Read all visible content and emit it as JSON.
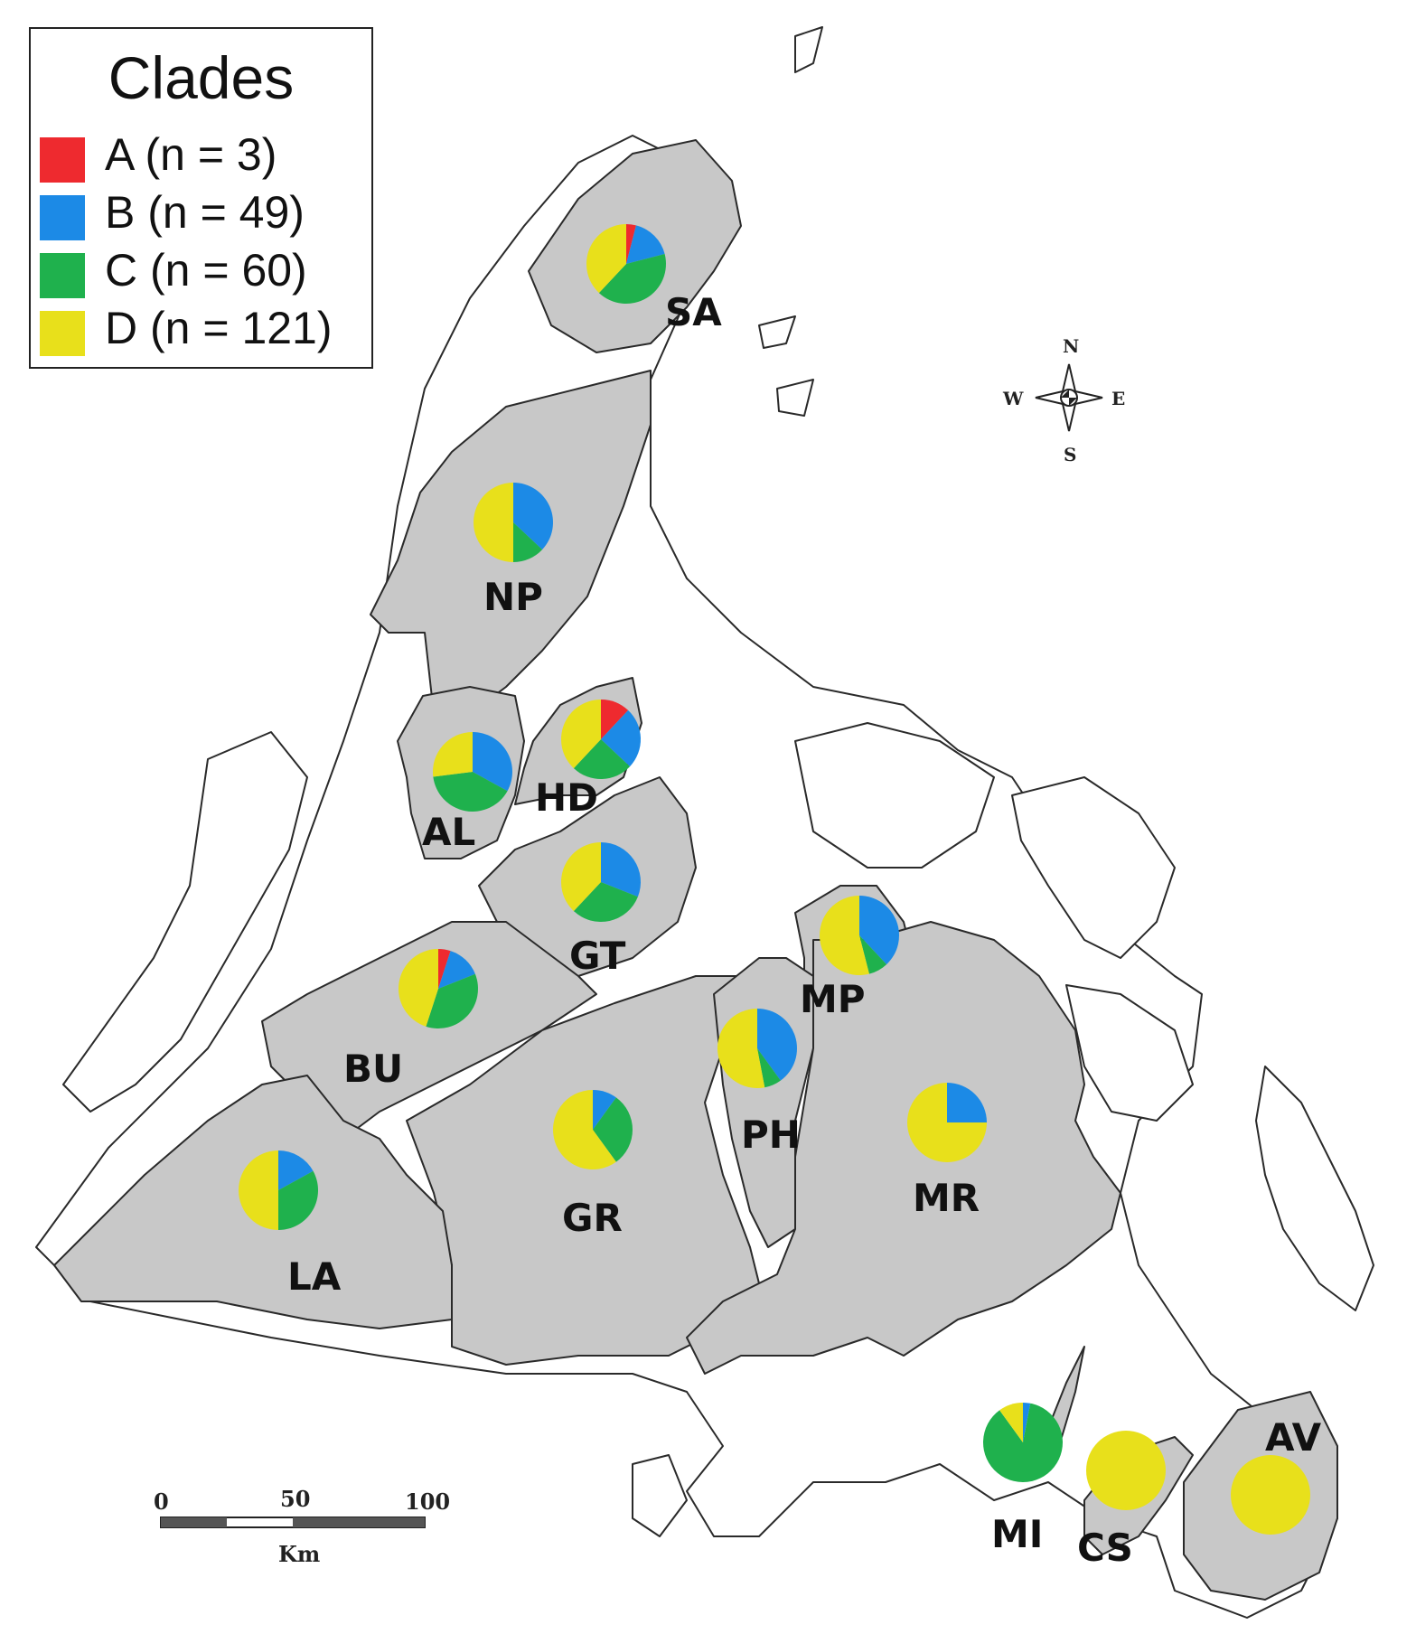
{
  "legend": {
    "title": "Clades",
    "items": [
      {
        "key": "A",
        "label": "A (n = 3)",
        "color": "#ee2a2f"
      },
      {
        "key": "B",
        "label": "B (n = 49)",
        "color": "#1c8ae6"
      },
      {
        "key": "C",
        "label": "C (n = 60)",
        "color": "#1fb14d"
      },
      {
        "key": "D",
        "label": "D (n = 121)",
        "color": "#e8e01b"
      }
    ]
  },
  "colors": {
    "land_shaded": "#c8c8c8",
    "coastline": "#2a2a2a"
  },
  "regions": [
    {
      "code": "SA",
      "proportions": {
        "A": 0.04,
        "B": 0.17,
        "C": 0.41,
        "D": 0.38
      }
    },
    {
      "code": "NP",
      "proportions": {
        "A": 0.0,
        "B": 0.37,
        "C": 0.13,
        "D": 0.5
      }
    },
    {
      "code": "AL",
      "proportions": {
        "A": 0.0,
        "B": 0.33,
        "C": 0.4,
        "D": 0.27
      }
    },
    {
      "code": "HD",
      "proportions": {
        "A": 0.12,
        "B": 0.25,
        "C": 0.25,
        "D": 0.38
      }
    },
    {
      "code": "GT",
      "proportions": {
        "A": 0.0,
        "B": 0.31,
        "C": 0.31,
        "D": 0.38
      }
    },
    {
      "code": "MP",
      "proportions": {
        "A": 0.0,
        "B": 0.38,
        "C": 0.08,
        "D": 0.54
      }
    },
    {
      "code": "BU",
      "proportions": {
        "A": 0.05,
        "B": 0.14,
        "C": 0.36,
        "D": 0.45
      }
    },
    {
      "code": "PH",
      "proportions": {
        "A": 0.0,
        "B": 0.4,
        "C": 0.07,
        "D": 0.53
      }
    },
    {
      "code": "MR",
      "proportions": {
        "A": 0.0,
        "B": 0.25,
        "C": 0.0,
        "D": 0.75
      }
    },
    {
      "code": "LA",
      "proportions": {
        "A": 0.0,
        "B": 0.17,
        "C": 0.33,
        "D": 0.5
      }
    },
    {
      "code": "GR",
      "proportions": {
        "A": 0.0,
        "B": 0.1,
        "C": 0.3,
        "D": 0.6
      }
    },
    {
      "code": "MI",
      "proportions": {
        "A": 0.0,
        "B": 0.03,
        "C": 0.87,
        "D": 0.1
      }
    },
    {
      "code": "CS",
      "proportions": {
        "A": 0.0,
        "B": 0.0,
        "C": 0.0,
        "D": 1.0
      }
    },
    {
      "code": "AV",
      "proportions": {
        "A": 0.0,
        "B": 0.0,
        "C": 0.0,
        "D": 1.0
      }
    }
  ],
  "compass": {
    "north": "N",
    "south": "S",
    "east": "E",
    "west": "W"
  },
  "scale_bar": {
    "ticks": [
      "0",
      "50",
      "100"
    ],
    "unit": "Km"
  }
}
